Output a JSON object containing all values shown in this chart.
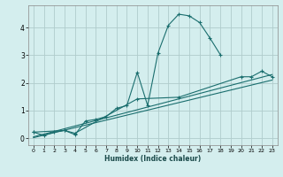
{
  "xlabel": "Humidex (Indice chaleur)",
  "bg_color": "#d4eeee",
  "grid_color": "#b0cccc",
  "line_color": "#1a6e6e",
  "xlim": [
    -0.5,
    23.5
  ],
  "ylim": [
    -0.25,
    4.8
  ],
  "x_ticks": [
    0,
    1,
    2,
    3,
    4,
    5,
    6,
    7,
    8,
    9,
    10,
    11,
    12,
    13,
    14,
    15,
    16,
    17,
    18,
    19,
    20,
    21,
    22,
    23
  ],
  "y_ticks": [
    0,
    1,
    2,
    3,
    4
  ],
  "series": {
    "curve1_x": [
      0,
      1,
      2,
      3,
      4,
      5,
      6,
      7,
      8,
      9,
      10,
      11,
      12,
      13,
      14,
      15,
      16,
      17,
      18
    ],
    "curve1_y": [
      0.22,
      0.1,
      0.22,
      0.28,
      0.13,
      0.62,
      0.68,
      0.78,
      1.08,
      1.18,
      2.38,
      1.18,
      3.08,
      4.08,
      4.48,
      4.42,
      4.18,
      3.62,
      3.02
    ],
    "curve2_x": [
      0,
      3,
      4,
      10,
      14,
      20,
      21,
      22,
      23
    ],
    "curve2_y": [
      0.22,
      0.28,
      0.18,
      1.42,
      1.48,
      2.22,
      2.22,
      2.42,
      2.22
    ],
    "line1_x": [
      0,
      23
    ],
    "line1_y": [
      0.05,
      2.3
    ],
    "line2_x": [
      0,
      23
    ],
    "line2_y": [
      0.02,
      2.1
    ]
  }
}
